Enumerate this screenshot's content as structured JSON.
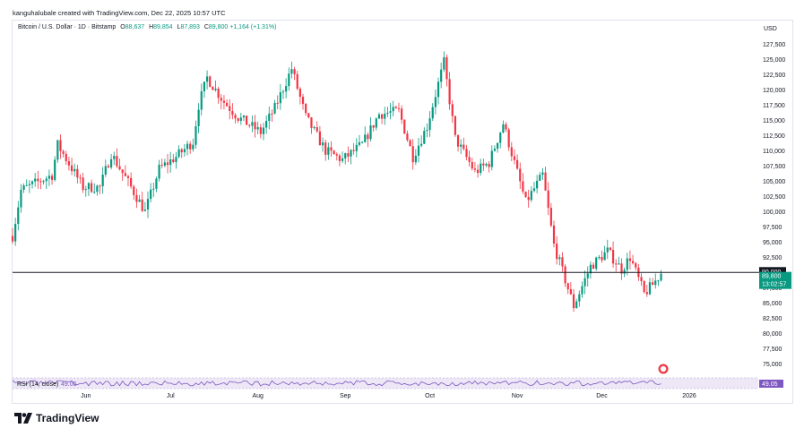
{
  "header": {
    "credit": "kanguhalubale created with TradingView.com, Dec 22, 2025 10:57 UTC",
    "symbol": "Bitcoin / U.S. Dollar · 1D · Bitstamp",
    "open_label": "O",
    "open": "88,637",
    "high_label": "H",
    "high": "89,854",
    "low_label": "L",
    "low": "87,893",
    "close_label": "C",
    "close": "89,800",
    "change": "+1,164 (+1.31%)"
  },
  "footer": {
    "logo_text": "TradingView"
  },
  "colors": {
    "up": "#089981",
    "down": "#f23645",
    "rsi": "#7e57c2",
    "rsi_band": "#ede7f6",
    "line_90k": "#131722",
    "price_tag": "#089981"
  },
  "chart_data": {
    "type": "candlestick",
    "currency_label": "USD",
    "y_ticks": [
      "127,500",
      "125,000",
      "122,500",
      "120,000",
      "117,500",
      "115,000",
      "112,500",
      "110,000",
      "107,500",
      "105,000",
      "102,500",
      "100,000",
      "97,500",
      "95,000",
      "92,500",
      "90,000",
      "87,500",
      "85,000",
      "82,500",
      "80,000",
      "77,500",
      "75,000"
    ],
    "ylim": [
      73500,
      128500
    ],
    "x_ticks": [
      "Jun",
      "Jul",
      "Aug",
      "Sep",
      "Oct",
      "Nov",
      "Dec",
      "2026"
    ],
    "horizontal_line": {
      "value": 90000,
      "label": "90,000"
    },
    "last_price": {
      "value": 89800,
      "label": "89,800",
      "countdown": "13:02:57"
    },
    "rsi": {
      "label": "RSI (14, close)",
      "value": "49.05",
      "series_value": 49.05,
      "upper": 70,
      "lower": 30
    },
    "trend_points": [
      [
        "2025-05-06",
        96000
      ],
      [
        "2025-05-09",
        103500
      ],
      [
        "2025-05-20",
        106000
      ],
      [
        "2025-05-22",
        111000
      ],
      [
        "2025-05-31",
        104000
      ],
      [
        "2025-06-06",
        104000
      ],
      [
        "2025-06-10",
        109500
      ],
      [
        "2025-06-17",
        104000
      ],
      [
        "2025-06-22",
        100000
      ],
      [
        "2025-06-27",
        107000
      ],
      [
        "2025-07-03",
        109000
      ],
      [
        "2025-07-09",
        111500
      ],
      [
        "2025-07-11",
        117500
      ],
      [
        "2025-07-14",
        122000
      ],
      [
        "2025-07-20",
        118000
      ],
      [
        "2025-07-25",
        115500
      ],
      [
        "2025-08-02",
        113000
      ],
      [
        "2025-08-07",
        117000
      ],
      [
        "2025-08-13",
        123500
      ],
      [
        "2025-08-18",
        115500
      ],
      [
        "2025-08-25",
        110000
      ],
      [
        "2025-08-31",
        108500
      ],
      [
        "2025-09-07",
        111000
      ],
      [
        "2025-09-13",
        116000
      ],
      [
        "2025-09-20",
        116500
      ],
      [
        "2025-09-25",
        109000
      ],
      [
        "2025-09-30",
        114000
      ],
      [
        "2025-10-06",
        124500
      ],
      [
        "2025-10-10",
        112000
      ],
      [
        "2025-10-17",
        106500
      ],
      [
        "2025-10-22",
        108000
      ],
      [
        "2025-10-27",
        114500
      ],
      [
        "2025-11-04",
        101500
      ],
      [
        "2025-11-10",
        106000
      ],
      [
        "2025-11-14",
        94500
      ],
      [
        "2025-11-21",
        84500
      ],
      [
        "2025-11-27",
        91000
      ],
      [
        "2025-12-03",
        93500
      ],
      [
        "2025-12-08",
        90500
      ],
      [
        "2025-12-11",
        92500
      ],
      [
        "2025-12-16",
        86500
      ],
      [
        "2025-12-19",
        88000
      ],
      [
        "2025-12-22",
        89800
      ]
    ]
  }
}
